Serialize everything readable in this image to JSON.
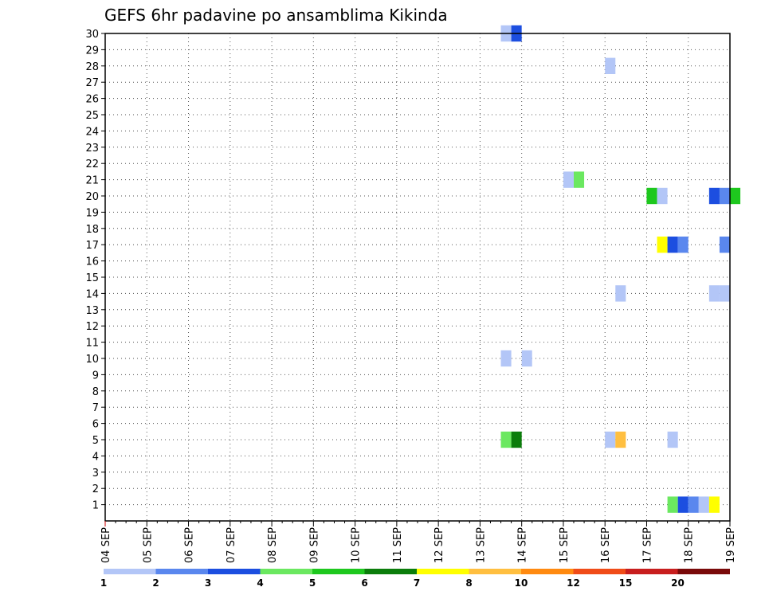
{
  "chart_data": {
    "type": "heatmap",
    "title": "GEFS 6hr padavine po ansamblima Kikinda",
    "xlabel": "",
    "ylabel": "",
    "x_labels": [
      "04 SEP",
      "05 SEP",
      "06 SEP",
      "07 SEP",
      "08 SEP",
      "09 SEP",
      "10 SEP",
      "11 SEP",
      "12 SEP",
      "13 SEP",
      "14 SEP",
      "15 SEP",
      "16 SEP",
      "17 SEP",
      "18 SEP",
      "19 SEP"
    ],
    "y_ticks": [
      "1",
      "2",
      "3",
      "4",
      "5",
      "6",
      "7",
      "8",
      "9",
      "10",
      "11",
      "12",
      "13",
      "14",
      "15",
      "16",
      "17",
      "18",
      "19",
      "20",
      "21",
      "22",
      "23",
      "24",
      "25",
      "26",
      "27",
      "28",
      "29",
      "30"
    ],
    "y_range": [
      0,
      30
    ],
    "grid": true,
    "colorscale": {
      "labels": [
        "1",
        "2",
        "3",
        "4",
        "5",
        "6",
        "7",
        "8",
        "10",
        "12",
        "15",
        "20"
      ],
      "colors": [
        "#b3c6f7",
        "#5a87ee",
        "#1c4ee0",
        "#6be860",
        "#1ec81e",
        "#0b7d0b",
        "#ffff00",
        "#ffbf40",
        "#ff8a10",
        "#f04c18",
        "#c81e1e",
        "#7a0a0a"
      ]
    },
    "cells": [
      {
        "member": 30,
        "date": "13 SEP 12Z",
        "category": 1
      },
      {
        "member": 30,
        "date": "13 SEP 18Z",
        "category": 3
      },
      {
        "member": 28,
        "date": "16 SEP 00Z",
        "category": 1
      },
      {
        "member": 21,
        "date": "15 SEP 00Z",
        "category": 1
      },
      {
        "member": 21,
        "date": "15 SEP 06Z",
        "category": 4
      },
      {
        "member": 20,
        "date": "17 SEP 00Z",
        "category": 5
      },
      {
        "member": 20,
        "date": "17 SEP 06Z",
        "category": 1
      },
      {
        "member": 20,
        "date": "18 SEP 12Z",
        "category": 3
      },
      {
        "member": 20,
        "date": "18 SEP 18Z",
        "category": 2
      },
      {
        "member": 20,
        "date": "19 SEP 00Z",
        "category": 5
      },
      {
        "member": 17,
        "date": "17 SEP 06Z",
        "category": 7
      },
      {
        "member": 17,
        "date": "17 SEP 12Z",
        "category": 3
      },
      {
        "member": 17,
        "date": "17 SEP 18Z",
        "category": 2
      },
      {
        "member": 17,
        "date": "18 SEP 18Z",
        "category": 2
      },
      {
        "member": 14,
        "date": "16 SEP 06Z",
        "category": 1
      },
      {
        "member": 14,
        "date": "18 SEP 12Z",
        "category": 1
      },
      {
        "member": 14,
        "date": "18 SEP 18Z",
        "category": 1
      },
      {
        "member": 10,
        "date": "13 SEP 12Z",
        "category": 1
      },
      {
        "member": 10,
        "date": "14 SEP 00Z",
        "category": 1
      },
      {
        "member": 5,
        "date": "13 SEP 12Z",
        "category": 4
      },
      {
        "member": 5,
        "date": "13 SEP 18Z",
        "category": 6
      },
      {
        "member": 5,
        "date": "16 SEP 00Z",
        "category": 1
      },
      {
        "member": 5,
        "date": "16 SEP 06Z",
        "category": 8
      },
      {
        "member": 5,
        "date": "17 SEP 12Z",
        "category": 1
      },
      {
        "member": 1,
        "date": "17 SEP 12Z",
        "category": 4
      },
      {
        "member": 1,
        "date": "17 SEP 18Z",
        "category": 3
      },
      {
        "member": 1,
        "date": "18 SEP 00Z",
        "category": 2
      },
      {
        "member": 1,
        "date": "18 SEP 06Z",
        "category": 1
      },
      {
        "member": 1,
        "date": "18 SEP 12Z",
        "category": 7
      }
    ]
  }
}
